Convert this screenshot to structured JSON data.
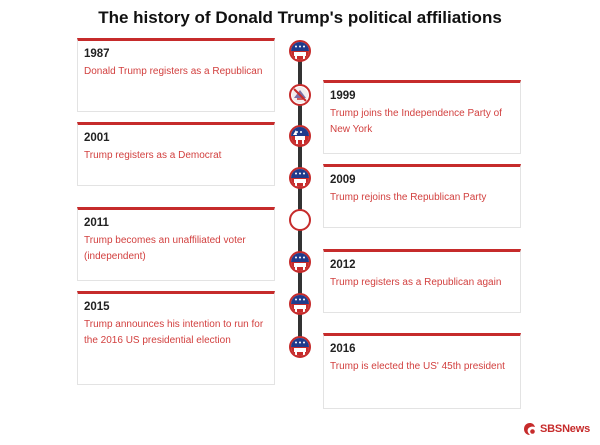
{
  "title": "The history of Donald Trump's political affiliations",
  "events": [
    {
      "year": "1987",
      "text": "Donald Trump registers as a Republican",
      "side": "left",
      "icon": "republican-elephant-icon"
    },
    {
      "year": "1999",
      "text": "Trump joins the Independence Party of New York",
      "side": "right",
      "icon": "independence-party-icon"
    },
    {
      "year": "2001",
      "text": "Trump registers as a Democrat",
      "side": "left",
      "icon": "democrat-donkey-icon"
    },
    {
      "year": "2009",
      "text": "Trump rejoins the Republican Party",
      "side": "right",
      "icon": "republican-elephant-icon"
    },
    {
      "year": "2011",
      "text": "Trump becomes an unaffiliated voter (independent)",
      "side": "left",
      "icon": "empty-circle-icon"
    },
    {
      "year": "2012",
      "text": "Trump registers as a Republican again",
      "side": "right",
      "icon": "republican-elephant-icon"
    },
    {
      "year": "2015",
      "text": "Trump announces his intention to run for the 2016 US presidential election",
      "side": "left",
      "icon": "republican-elephant-icon"
    },
    {
      "year": "2016",
      "text": "Trump is elected the US' 45th president",
      "side": "right",
      "icon": "republican-elephant-icon"
    }
  ],
  "brand": {
    "name": "SBS News",
    "text": "SBSNews",
    "color": "#c62b2b"
  },
  "colors": {
    "accent": "#c62b2b",
    "text_red": "#d2403f",
    "spine": "#333333",
    "republican_blue": "#1f3b8c"
  }
}
